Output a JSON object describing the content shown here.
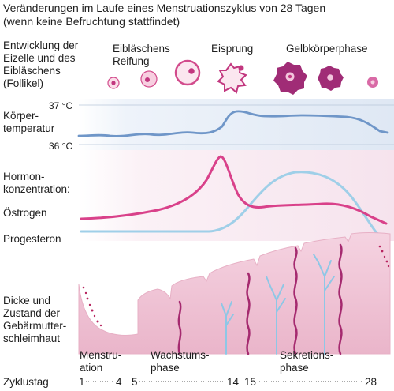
{
  "title": "Veränderungen im Laufe eines Menstruationszyklus von 28 Tagen\n(wenn keine Befruchtung stattfindet)",
  "rows": {
    "follicle": "Entwicklung der\nEizelle und des\nEibläschens\n(Follikel)",
    "temperature": "Körper-\ntemperatur",
    "hormone": "Hormon-\nkonzentration:",
    "estrogen": "Östrogen",
    "progesterone": "Progesteron",
    "endometrium": "Dicke und\nZustand der\nGebärmutter-\nschleimhaut",
    "cycle_day": "Zyklustag"
  },
  "follicle_stages": {
    "maturation": "Eibläschens\nReifung",
    "ovulation": "Eisprung",
    "luteal": "Gelbkörperphase"
  },
  "temperature_axis": {
    "high": "37 °C",
    "low": "36 °C"
  },
  "phases": {
    "menstruation": "Menstru-\nation",
    "proliferation": "Wachstums-\nphase",
    "secretion": "Sekretions-\nphase"
  },
  "cycle_days": {
    "d1": "1",
    "d4": "4",
    "d5": "5",
    "d14": "14",
    "d15": "15",
    "d28": "28"
  },
  "colors": {
    "estrogen": "#d9418a",
    "progesterone": "#9fcfe8",
    "temperature": "#6f96c8",
    "follicle": "#c2377f",
    "endometrium": "#f2c4d6"
  }
}
